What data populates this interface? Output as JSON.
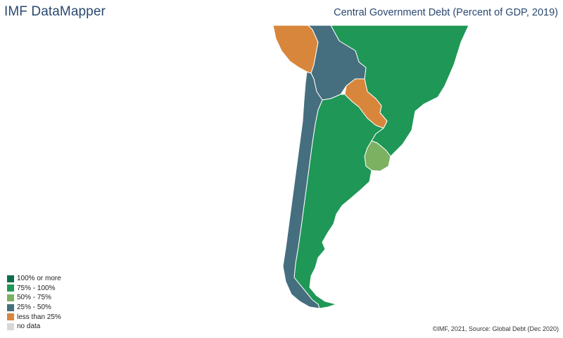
{
  "header": {
    "brand": "IMF DataMapper",
    "title": "Central Government Debt (Percent of GDP, 2019)"
  },
  "legend": [
    {
      "label": "100% or more",
      "color": "#0e6e4a"
    },
    {
      "label": "75% - 100%",
      "color": "#1f9756"
    },
    {
      "label": "50% - 75%",
      "color": "#7cb162"
    },
    {
      "label": "25% - 50%",
      "color": "#456f7f"
    },
    {
      "label": "less than 25%",
      "color": "#d8863b"
    },
    {
      "label": "no data",
      "color": "#d8d8d8"
    }
  ],
  "countries": [
    {
      "name": "Peru",
      "category": "less than 25%"
    },
    {
      "name": "Bolivia",
      "category": "25% - 50%"
    },
    {
      "name": "Brazil",
      "category": "75% - 100%"
    },
    {
      "name": "Paraguay",
      "category": "less than 25%"
    },
    {
      "name": "Chile",
      "category": "25% - 50%"
    },
    {
      "name": "Argentina",
      "category": "75% - 100%"
    },
    {
      "name": "Uruguay",
      "category": "50% - 75%"
    }
  ],
  "footer": {
    "source": "©IMF, 2021, Source: Global Debt (Dec 2020)"
  }
}
